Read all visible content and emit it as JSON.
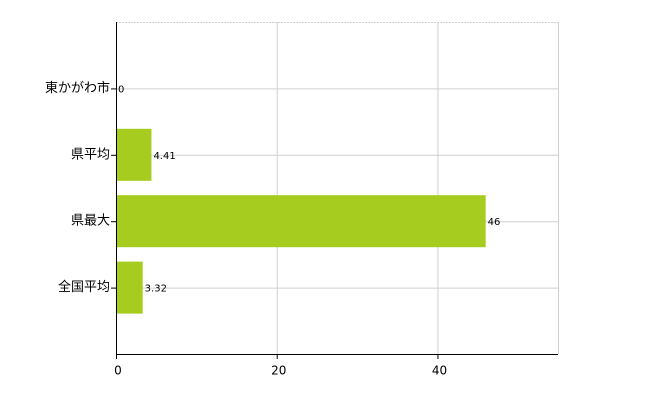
{
  "chart_data": {
    "type": "bar",
    "orientation": "horizontal",
    "categories": [
      "東かがわ市",
      "県平均",
      "県最大",
      "全国平均"
    ],
    "values": [
      0,
      4.41,
      46,
      3.32
    ],
    "color": "#a5cc1e",
    "xlim": [
      0,
      55
    ],
    "xticks": [
      0,
      20,
      40
    ],
    "grid": true
  }
}
